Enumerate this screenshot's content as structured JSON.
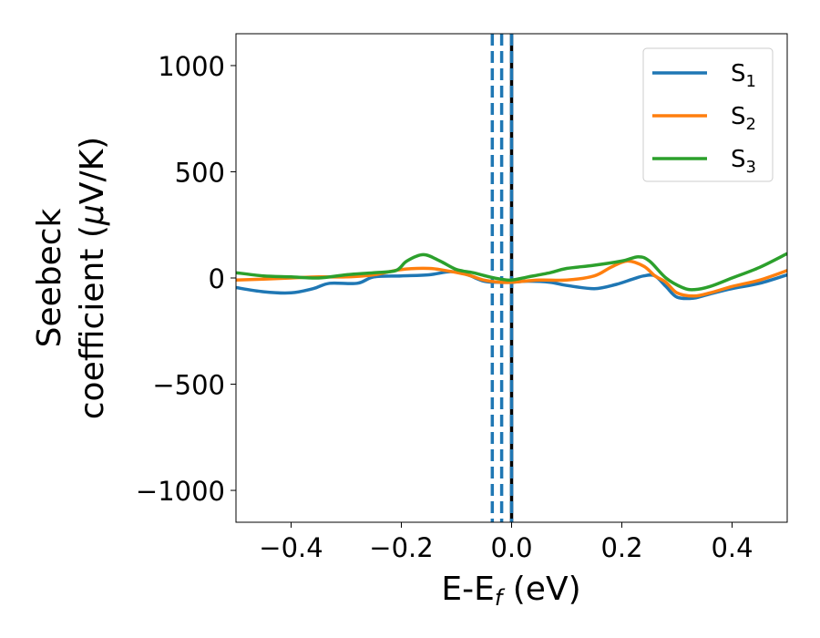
{
  "chart_data": {
    "type": "line",
    "xlabel_main": "E-E",
    "xlabel_sub": "f",
    "xlabel_tail": " (eV)",
    "ylabel_line1": "Seebeck",
    "ylabel_line2_pre": "coefficient  (",
    "ylabel_mu": "μ",
    "ylabel_line2_post": "V/K)",
    "xlim": [
      -0.5,
      0.5
    ],
    "ylim": [
      -1150,
      1150
    ],
    "x_ticks": [
      -0.4,
      -0.2,
      0.0,
      0.2,
      0.4
    ],
    "x_tick_labels": [
      "−0.4",
      "−0.2",
      "0.0",
      "0.2",
      "0.4"
    ],
    "y_ticks": [
      1000,
      500,
      0,
      -500,
      -1000
    ],
    "y_tick_labels": [
      "1000",
      "500",
      "0",
      "−500",
      "−1000"
    ],
    "grid": false,
    "legend_position": "top-right",
    "vertical_lines": [
      {
        "x": -0.035,
        "style": "dashed",
        "color": "#1f77b4"
      },
      {
        "x": -0.018,
        "style": "dashed",
        "color": "#1f77b4"
      },
      {
        "x": 0.0,
        "style": "solid",
        "color": "#000000"
      },
      {
        "x": 0.0,
        "style": "dashed",
        "color": "#1f77b4"
      }
    ],
    "series": [
      {
        "name": "S",
        "sub": "1",
        "color": "#1f77b4",
        "points": [
          [
            -0.5,
            -45
          ],
          [
            -0.45,
            -65
          ],
          [
            -0.4,
            -70
          ],
          [
            -0.36,
            -50
          ],
          [
            -0.33,
            -25
          ],
          [
            -0.28,
            -25
          ],
          [
            -0.25,
            5
          ],
          [
            -0.2,
            10
          ],
          [
            -0.15,
            15
          ],
          [
            -0.11,
            30
          ],
          [
            -0.08,
            15
          ],
          [
            -0.05,
            -15
          ],
          [
            -0.02,
            -20
          ],
          [
            0.0,
            -20
          ],
          [
            0.03,
            -15
          ],
          [
            0.07,
            -20
          ],
          [
            0.1,
            -35
          ],
          [
            0.15,
            -50
          ],
          [
            0.19,
            -30
          ],
          [
            0.22,
            -5
          ],
          [
            0.24,
            10
          ],
          [
            0.26,
            10
          ],
          [
            0.28,
            -40
          ],
          [
            0.3,
            -90
          ],
          [
            0.33,
            -95
          ],
          [
            0.36,
            -75
          ],
          [
            0.4,
            -50
          ],
          [
            0.45,
            -25
          ],
          [
            0.5,
            15
          ]
        ]
      },
      {
        "name": "S",
        "sub": "2",
        "color": "#ff7f0e",
        "points": [
          [
            -0.5,
            -10
          ],
          [
            -0.45,
            -5
          ],
          [
            -0.4,
            0
          ],
          [
            -0.35,
            5
          ],
          [
            -0.3,
            5
          ],
          [
            -0.25,
            15
          ],
          [
            -0.2,
            40
          ],
          [
            -0.15,
            45
          ],
          [
            -0.12,
            35
          ],
          [
            -0.08,
            15
          ],
          [
            -0.05,
            -10
          ],
          [
            -0.02,
            -20
          ],
          [
            0.0,
            -20
          ],
          [
            0.05,
            -10
          ],
          [
            0.1,
            -10
          ],
          [
            0.15,
            10
          ],
          [
            0.18,
            50
          ],
          [
            0.21,
            80
          ],
          [
            0.24,
            55
          ],
          [
            0.26,
            10
          ],
          [
            0.28,
            -20
          ],
          [
            0.3,
            -70
          ],
          [
            0.33,
            -85
          ],
          [
            0.36,
            -70
          ],
          [
            0.4,
            -40
          ],
          [
            0.45,
            -10
          ],
          [
            0.5,
            35
          ]
        ]
      },
      {
        "name": "S",
        "sub": "3",
        "color": "#2ca02c",
        "points": [
          [
            -0.5,
            25
          ],
          [
            -0.45,
            10
          ],
          [
            -0.4,
            5
          ],
          [
            -0.35,
            0
          ],
          [
            -0.3,
            15
          ],
          [
            -0.25,
            25
          ],
          [
            -0.21,
            35
          ],
          [
            -0.19,
            80
          ],
          [
            -0.16,
            110
          ],
          [
            -0.13,
            80
          ],
          [
            -0.1,
            40
          ],
          [
            -0.07,
            25
          ],
          [
            -0.04,
            5
          ],
          [
            -0.02,
            -5
          ],
          [
            0.0,
            -10
          ],
          [
            0.03,
            5
          ],
          [
            0.07,
            25
          ],
          [
            0.1,
            45
          ],
          [
            0.15,
            60
          ],
          [
            0.2,
            80
          ],
          [
            0.23,
            100
          ],
          [
            0.25,
            80
          ],
          [
            0.28,
            0
          ],
          [
            0.31,
            -45
          ],
          [
            0.33,
            -55
          ],
          [
            0.36,
            -40
          ],
          [
            0.4,
            0
          ],
          [
            0.45,
            50
          ],
          [
            0.5,
            115
          ]
        ]
      }
    ]
  }
}
